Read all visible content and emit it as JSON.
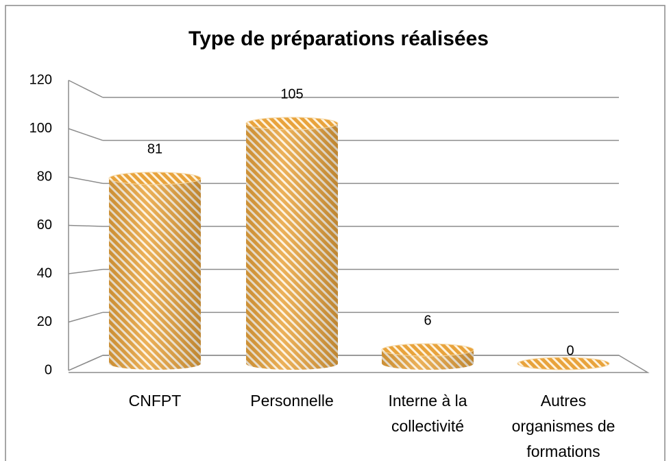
{
  "chart_data": {
    "type": "bar3d",
    "title": "Type de préparations réalisées",
    "categories": [
      "CNFPT",
      "Personnelle",
      "Interne à la collectivité",
      "Autres organismes de formations"
    ],
    "values": [
      81,
      105,
      6,
      0
    ],
    "color": "#e8a33c",
    "ylim": [
      0,
      120
    ],
    "yticks": [
      0,
      20,
      40,
      60,
      80,
      100,
      120
    ],
    "grid": true
  }
}
